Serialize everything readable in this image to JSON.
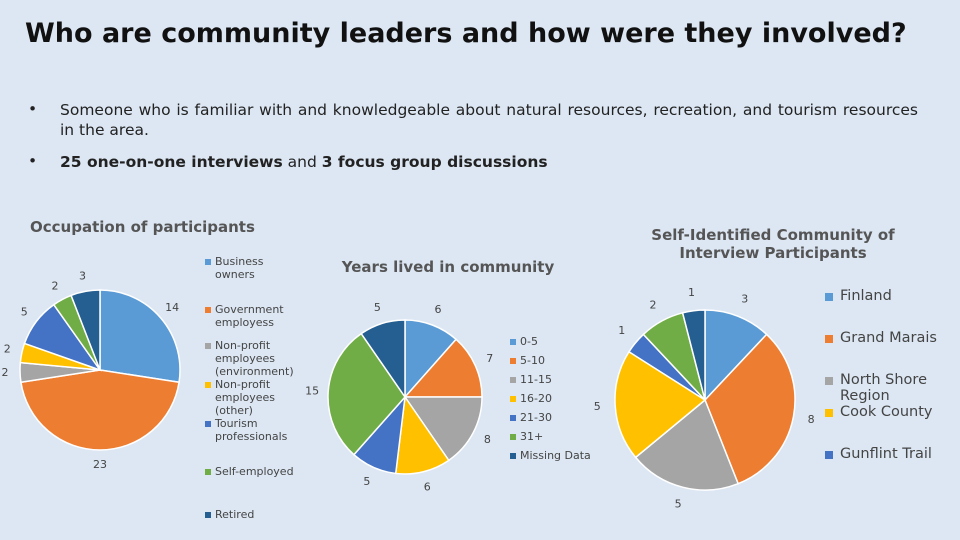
{
  "header": {
    "title": "Who are community leaders and how were they involved?"
  },
  "bullets": [
    [
      "Someone who is familiar with and knowledgeable about natural resources, recreation, and tourism resources in the area."
    ],
    [
      "25 one-on-one interviews",
      "and",
      "3 focus group discussions"
    ]
  ],
  "chart_data": [
    {
      "type": "pie",
      "title": "Occupation of participants",
      "categories": [
        "Business owners",
        "Government employess",
        "Non-profit employees (environment)",
        "Non-profit employees (other)",
        "Tourism professionals",
        "Self-employed",
        "Retired"
      ],
      "values": [
        14,
        23,
        2,
        2,
        5,
        2,
        3
      ],
      "colors": [
        "#5b9bd5",
        "#ed7d31",
        "#a5a5a5",
        "#ffc000",
        "#4472c4",
        "#70ad47",
        "#255e91"
      ]
    },
    {
      "type": "pie",
      "title": "Years lived in community",
      "categories": [
        "0-5",
        "5-10",
        "11-15",
        "16-20",
        "21-30",
        "31+",
        "Missing Data"
      ],
      "values": [
        6,
        7,
        8,
        6,
        5,
        15,
        5
      ],
      "colors": [
        "#5b9bd5",
        "#ed7d31",
        "#a5a5a5",
        "#ffc000",
        "#4472c4",
        "#70ad47",
        "#255e91"
      ]
    },
    {
      "type": "pie",
      "title": "Self-Identified Community of Interview Participants",
      "categories": [
        "Finland",
        "Grand Marais",
        "North Shore Region",
        "Cook County",
        "Gunflint Trail",
        null,
        null
      ],
      "values": [
        3,
        8,
        5,
        5,
        1,
        2,
        1
      ],
      "colors": [
        "#5b9bd5",
        "#ed7d31",
        "#a5a5a5",
        "#ffc000",
        "#4472c4",
        "#70ad47",
        "#255e91"
      ]
    }
  ]
}
